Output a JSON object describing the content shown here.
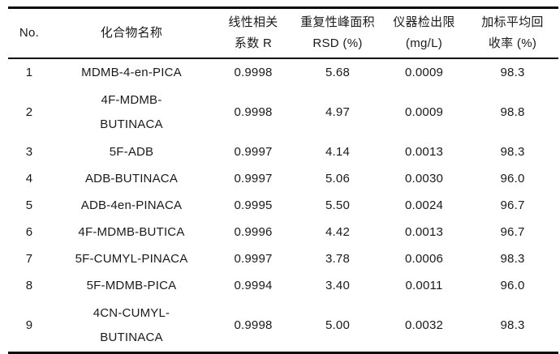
{
  "table": {
    "columns": [
      {
        "line1": "No.",
        "line2": ""
      },
      {
        "line1": "化合物名称",
        "line2": ""
      },
      {
        "line1": "线性相关",
        "line2": "系数 R"
      },
      {
        "line1": "重复性峰面积",
        "line2": "RSD (%)"
      },
      {
        "line1": "仪器检出限",
        "line2": "(mg/L)"
      },
      {
        "line1": "加标平均回",
        "line2": "收率 (%)"
      }
    ],
    "rows": [
      {
        "no": "1",
        "compound": "MDMB-4-en-PICA",
        "r": "0.9998",
        "rsd": "5.68",
        "lod": "0.0009",
        "recovery": "98.3"
      },
      {
        "no": "2",
        "compound_lines": [
          "4F-MDMB-",
          "BUTINACA"
        ],
        "r": "0.9998",
        "rsd": "4.97",
        "lod": "0.0009",
        "recovery": "98.8"
      },
      {
        "no": "3",
        "compound": "5F-ADB",
        "r": "0.9997",
        "rsd": "4.14",
        "lod": "0.0013",
        "recovery": "98.3"
      },
      {
        "no": "4",
        "compound": "ADB-BUTINACA",
        "r": "0.9997",
        "rsd": "5.06",
        "lod": "0.0030",
        "recovery": "96.0"
      },
      {
        "no": "5",
        "compound": "ADB-4en-PINACA",
        "r": "0.9995",
        "rsd": "5.50",
        "lod": "0.0024",
        "recovery": "96.7"
      },
      {
        "no": "6",
        "compound": "4F-MDMB-BUTICA",
        "r": "0.9996",
        "rsd": "4.42",
        "lod": "0.0013",
        "recovery": "96.7"
      },
      {
        "no": "7",
        "compound": "5F-CUMYL-PINACA",
        "r": "0.9997",
        "rsd": "3.78",
        "lod": "0.0006",
        "recovery": "98.3"
      },
      {
        "no": "8",
        "compound": "5F-MDMB-PICA",
        "r": "0.9994",
        "rsd": "3.40",
        "lod": "0.0011",
        "recovery": "96.0"
      },
      {
        "no": "9",
        "compound_lines": [
          "4CN-CUMYL-",
          "BUTINACA"
        ],
        "r": "0.9998",
        "rsd": "5.00",
        "lod": "0.0032",
        "recovery": "98.3"
      }
    ],
    "colors": {
      "text": "#1a1a1a",
      "rule": "#0a0a0a",
      "background": "#ffffff"
    }
  }
}
